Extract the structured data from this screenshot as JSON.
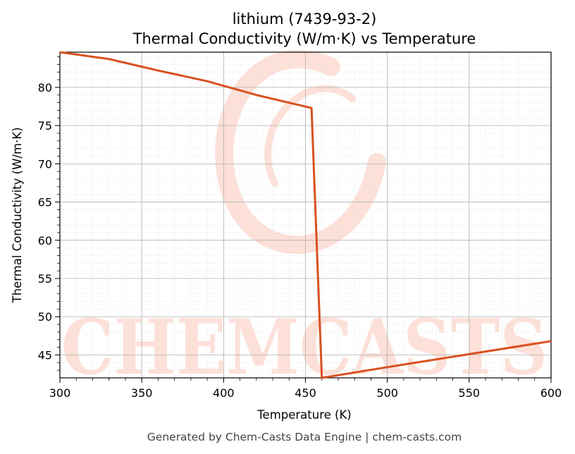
{
  "chart_data": {
    "type": "line",
    "title_line1": "lithium (7439-93-2)",
    "title_line2": "Thermal Conductivity (W/m·K) vs Temperature",
    "xlabel": "Temperature (K)",
    "ylabel": "Thermal Conductivity (W/m·K)",
    "xlim": [
      300,
      600
    ],
    "ylim": [
      42,
      84.6
    ],
    "x_ticks": [
      300,
      350,
      400,
      450,
      500,
      550,
      600
    ],
    "y_ticks": [
      45,
      50,
      55,
      60,
      65,
      70,
      75,
      80
    ],
    "grid": true,
    "series": [
      {
        "color": "#d95020",
        "points": [
          [
            300,
            84.6
          ],
          [
            330,
            83.7
          ],
          [
            360,
            82.2
          ],
          [
            390,
            80.8
          ],
          [
            420,
            79.0
          ],
          [
            453.7,
            77.3
          ],
          [
            460,
            42.0
          ],
          [
            500,
            43.4
          ],
          [
            550,
            45.1
          ],
          [
            600,
            46.8
          ]
        ]
      }
    ]
  },
  "watermark": {
    "text": "CHEMCASTS",
    "color": "#fde0d8"
  },
  "footer": "Generated by Chem-Casts Data Engine | chem-casts.com"
}
